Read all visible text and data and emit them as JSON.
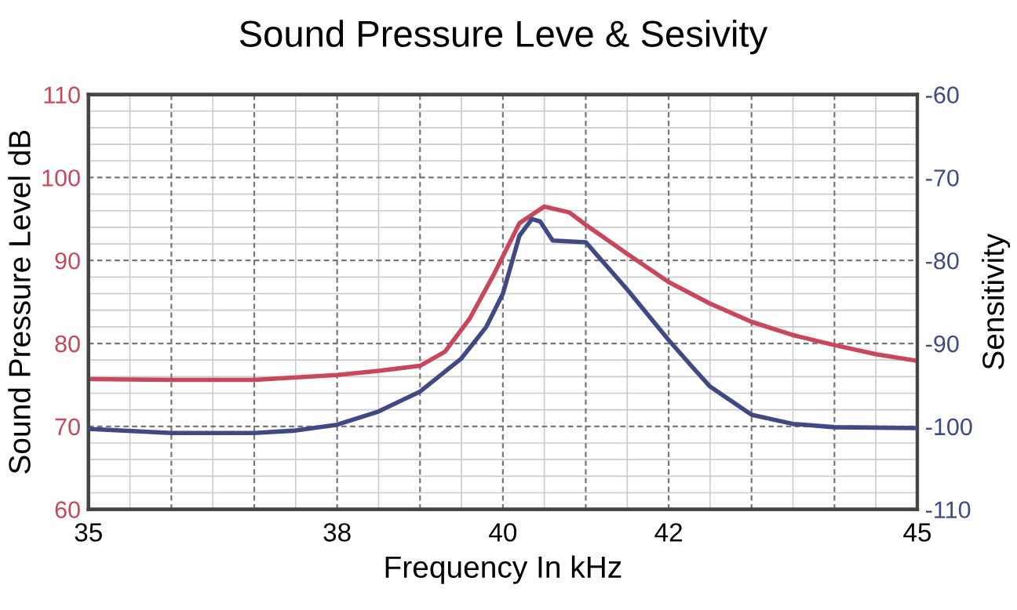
{
  "chart_data": {
    "type": "line",
    "title": "Sound Pressure Leve & Sesivity",
    "xlabel": "Frequency In kHz",
    "ylabel": "Sound Pressure Level dB",
    "y2label": "Sensitivity",
    "xlim": [
      35,
      45
    ],
    "xticks": [
      35,
      {
        "value": 36,
        "label": null
      },
      {
        "value": 37,
        "label": null
      },
      38,
      {
        "value": 39,
        "label": null
      },
      40,
      {
        "value": 41,
        "label": null
      },
      42,
      {
        "value": 43,
        "label": null
      },
      {
        "value": 44,
        "label": null
      },
      45
    ],
    "ylim": [
      60,
      110
    ],
    "yticks": [
      60,
      70,
      80,
      90,
      100,
      110
    ],
    "y2lim": [
      -110,
      -60
    ],
    "y2ticks": [
      -110,
      -100,
      -90,
      -80,
      -70,
      -60
    ],
    "grid": true,
    "line_style": "solid",
    "marker": "none",
    "series": [
      {
        "color": "#c8475a",
        "x": [
          35,
          36,
          37,
          38,
          38.5,
          39,
          39.3,
          39.6,
          39.9,
          40.2,
          40.5,
          40.8,
          41.0,
          41.5,
          42,
          42.5,
          43,
          43.5,
          44,
          44.5,
          45
        ],
        "values": [
          75.7,
          75.6,
          75.6,
          76.2,
          76.7,
          77.3,
          79,
          83,
          88.5,
          94.5,
          96.5,
          95.8,
          94.3,
          90.8,
          87.4,
          84.8,
          82.6,
          81,
          79.8,
          78.7,
          77.9
        ]
      },
      {
        "color": "#3f4a85",
        "axis": "y2",
        "x": [
          35,
          36,
          37,
          37.5,
          38,
          38.5,
          39,
          39.5,
          39.8,
          40.0,
          40.2,
          40.35,
          40.45,
          40.6,
          41.0,
          41.5,
          42,
          42.3,
          42.5,
          43,
          43.5,
          44,
          45
        ],
        "values": [
          -100.3,
          -100.8,
          -100.8,
          -100.5,
          -99.8,
          -98.2,
          -95.8,
          -91.8,
          -88,
          -84,
          -77,
          -75,
          -75.3,
          -77.6,
          -77.8,
          -83.5,
          -89.6,
          -93,
          -95.2,
          -98.6,
          -99.7,
          -100.1,
          -100.2
        ]
      }
    ]
  }
}
